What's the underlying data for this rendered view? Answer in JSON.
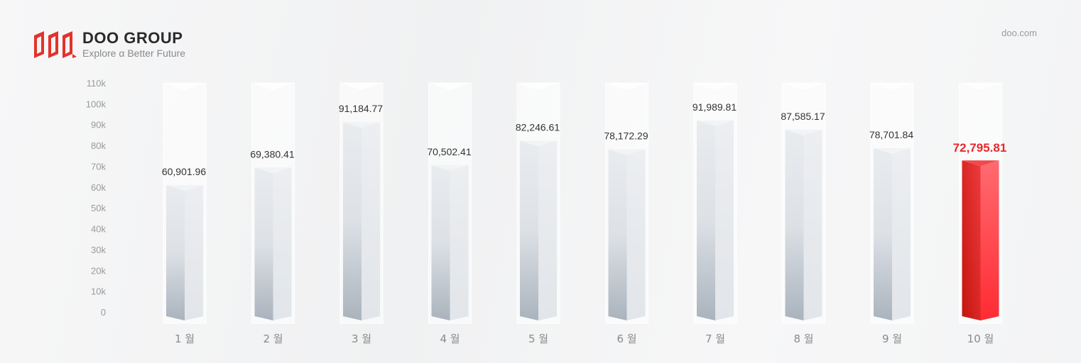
{
  "header": {
    "brand_name": "DOO GROUP",
    "tagline": "Explore α Better Future",
    "site": "doo.com"
  },
  "colors": {
    "highlight": "#e8282b",
    "bar": "#e3e6ea",
    "axis_text": "#9a9a9a"
  },
  "chart_data": {
    "type": "bar",
    "categories": [
      "1 월",
      "2 월",
      "3 월",
      "4 월",
      "5 월",
      "6 월",
      "7 월",
      "8 월",
      "9 월",
      "10 월"
    ],
    "values": [
      60901.96,
      69380.41,
      91184.77,
      70502.41,
      82246.61,
      78172.29,
      91989.81,
      87585.17,
      78701.84,
      72795.81
    ],
    "value_labels": [
      "60,901.96",
      "69,380.41",
      "91,184.77",
      "70,502.41",
      "82,246.61",
      "78,172.29",
      "91,989.81",
      "87,585.17",
      "78,701.84",
      "72,795.81"
    ],
    "highlight_index": 9,
    "ylim": [
      0,
      110000
    ],
    "yticks": [
      0,
      10000,
      20000,
      30000,
      40000,
      50000,
      60000,
      70000,
      80000,
      90000,
      100000,
      110000
    ],
    "ytick_labels": [
      "0",
      "10k",
      "20k",
      "30k",
      "40k",
      "50k",
      "60k",
      "70k",
      "80k",
      "90k",
      "100k",
      "110k"
    ],
    "grid": false,
    "title": "",
    "xlabel": "",
    "ylabel": ""
  }
}
